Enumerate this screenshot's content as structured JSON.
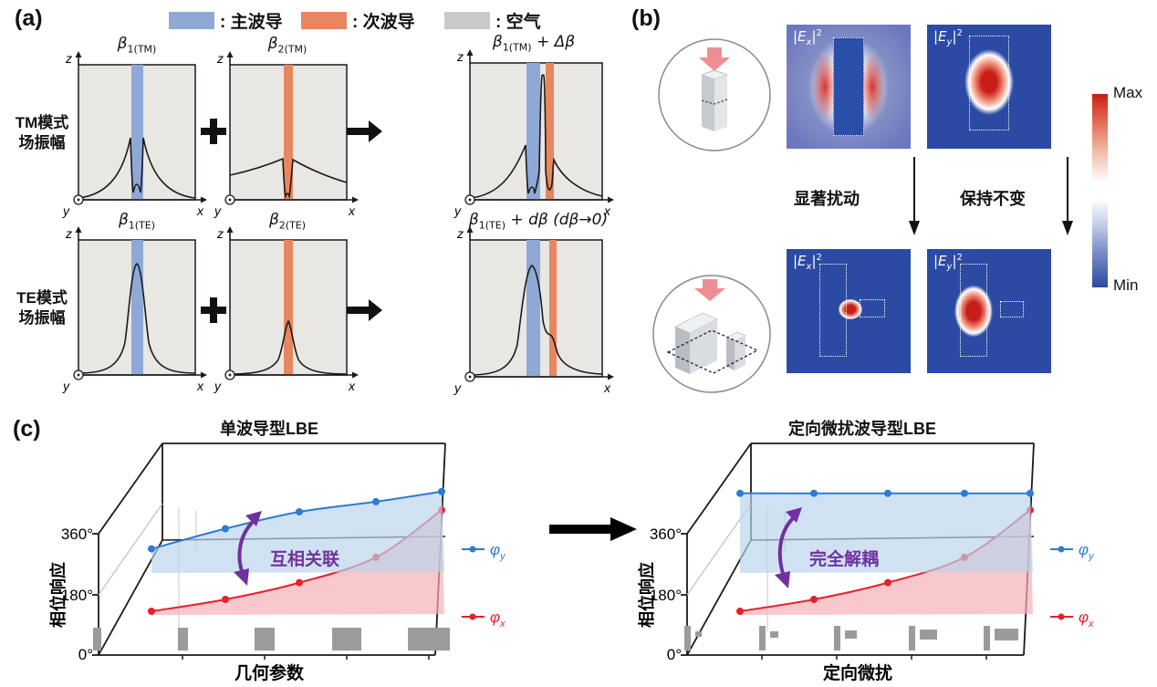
{
  "panel_labels": {
    "a": "(a)",
    "b": "(b)",
    "c": "(c)"
  },
  "colors": {
    "main_waveguide": "#8ea9d6",
    "secondary_waveguide": "#e8865f",
    "air": "#c9c9c9",
    "phi_y": "#2e7bd0",
    "phi_x": "#e8202c",
    "annotation_purple": "#7030a0",
    "field_bg_blue": "#2b4aa3",
    "field_hot_red": "#c81d18"
  },
  "legend_a": {
    "items": [
      {
        "label": ": 主波导",
        "swatch_color": "#8ea9d6"
      },
      {
        "label": ": 次波导",
        "swatch_color": "#e8865f"
      },
      {
        "label": ": 空气",
        "swatch_color": "#c9c9c9"
      }
    ]
  },
  "panel_a": {
    "row_labels": [
      {
        "line1": "TM模式",
        "line2": "场振幅"
      },
      {
        "line1": "TE模式",
        "line2": "场振幅"
      }
    ],
    "axes": {
      "x": "x",
      "y": "y",
      "z": "z"
    },
    "plot_titles": [
      {
        "base": "β",
        "sub": "1(TM)",
        "rest": ""
      },
      {
        "base": "β",
        "sub": "2(TM)",
        "rest": ""
      },
      {
        "base": "β",
        "sub": "1(TM)",
        "rest": " + Δβ"
      },
      {
        "base": "β",
        "sub": "1(TE)",
        "rest": ""
      },
      {
        "base": "β",
        "sub": "2(TE)",
        "rest": ""
      },
      {
        "base": "β",
        "sub": "1(TE)",
        "rest": " + dβ (dβ→0)"
      }
    ]
  },
  "panel_b": {
    "field_labels": [
      {
        "pre": "|E",
        "sub": "x",
        "post": "|",
        "sup": "2"
      },
      {
        "pre": "|E",
        "sub": "y",
        "post": "|",
        "sup": "2"
      },
      {
        "pre": "|E",
        "sub": "x",
        "post": "|",
        "sup": "2"
      },
      {
        "pre": "|E",
        "sub": "y",
        "post": "|",
        "sup": "2"
      }
    ],
    "flow_labels": [
      "显著扰动",
      "保持不变"
    ],
    "colorbar": {
      "max": "Max",
      "min": "Min"
    }
  },
  "panel_c": {
    "ylabel": "相位响应",
    "yticks": [
      "0°",
      "180°",
      "360°"
    ],
    "legend": {
      "phi": "φ",
      "sub_y": "y",
      "sub_x": "x"
    },
    "left": {
      "title": "单波导型LBE",
      "xlabel": "几何参数",
      "annotation": "互相关联"
    },
    "right": {
      "title": "定向微扰波导型LBE",
      "xlabel": "定向微扰",
      "annotation": "完全解耦"
    }
  },
  "chart_data": [
    {
      "type": "line",
      "title": "单波导型LBE",
      "xlabel": "几何参数",
      "ylabel": "相位响应",
      "yticks_deg": [
        0,
        180,
        360
      ],
      "x": [
        1,
        2,
        3,
        4,
        5
      ],
      "series": [
        {
          "name": "φy",
          "color": "#2e7bd0",
          "fill_color": "#b9d4ec",
          "values_deg": [
            315,
            375,
            425,
            455,
            485
          ]
        },
        {
          "name": "φx",
          "color": "#e8202c",
          "fill_color": "#f6aeb6",
          "values_deg": [
            130,
            165,
            215,
            290,
            430
          ]
        }
      ],
      "annotation": "互相关联",
      "legend_position": "right",
      "grid": false
    },
    {
      "type": "line",
      "title": "定向微扰波导型LBE",
      "xlabel": "定向微扰",
      "ylabel": "相位响应",
      "yticks_deg": [
        0,
        180,
        360
      ],
      "x": [
        1,
        2,
        3,
        4,
        5
      ],
      "series": [
        {
          "name": "φy",
          "color": "#2e7bd0",
          "fill_color": "#b9d4ec",
          "values_deg": [
            480,
            480,
            480,
            480,
            480
          ]
        },
        {
          "name": "φx",
          "color": "#e8202c",
          "fill_color": "#f6aeb6",
          "values_deg": [
            130,
            165,
            215,
            290,
            430
          ]
        }
      ],
      "annotation": "完全解耦",
      "legend_position": "right",
      "grid": false
    }
  ]
}
